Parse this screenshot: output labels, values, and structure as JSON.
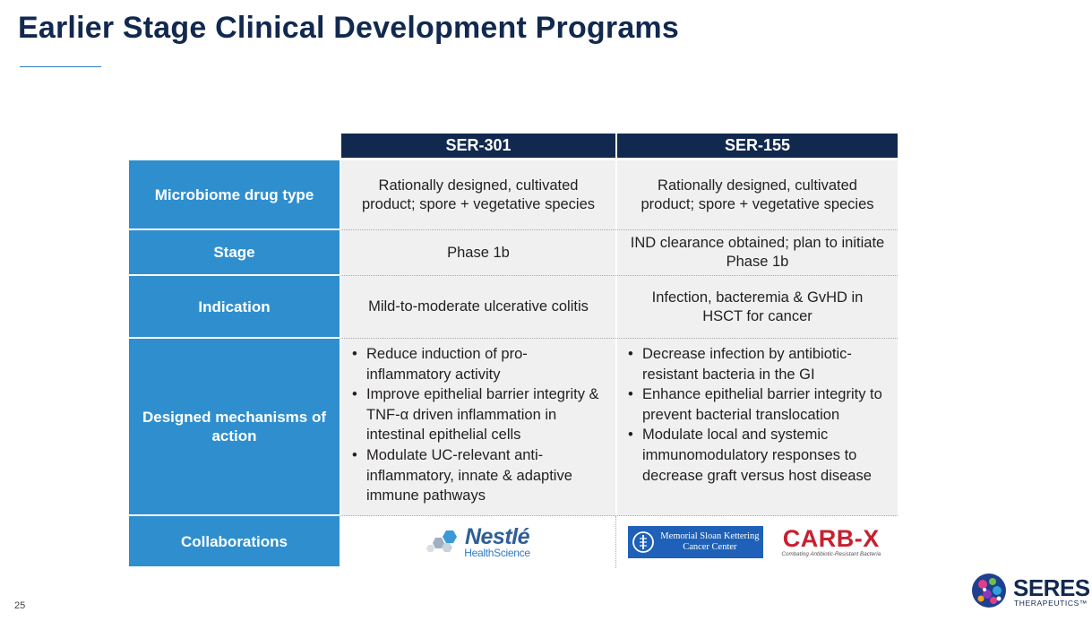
{
  "slide": {
    "title": "Earlier Stage Clinical Development Programs",
    "page_number": "25"
  },
  "table": {
    "columns": [
      "SER-301",
      "SER-155"
    ],
    "rows": [
      {
        "label": "Microbiome drug type",
        "cells": [
          "Rationally designed, cultivated product; spore + vegetative species",
          "Rationally designed, cultivated product; spore + vegetative species"
        ]
      },
      {
        "label": "Stage",
        "cells": [
          "Phase 1b",
          "IND clearance obtained; plan to initiate Phase 1b"
        ]
      },
      {
        "label": "Indication",
        "cells": [
          "Mild-to-moderate ulcerative colitis",
          "Infection, bacteremia & GvHD in HSCT for cancer"
        ]
      },
      {
        "label": "Designed mechanisms of action",
        "bullets": [
          [
            "Reduce induction of pro-inflammatory activity",
            "Improve epithelial barrier integrity & TNF-α driven inflammation in intestinal epithelial cells",
            "Modulate UC-relevant anti-inflammatory, innate & adaptive immune pathways"
          ],
          [
            "Decrease infection by antibiotic-resistant bacteria in the GI",
            "Enhance epithelial barrier integrity to prevent bacterial translocation",
            "Modulate local and systemic immunomodulatory responses to decrease graft versus host disease"
          ]
        ]
      },
      {
        "label": "Collaborations"
      }
    ]
  },
  "logos": {
    "nestle": {
      "word": "Nestlé",
      "sub": "HealthScience"
    },
    "mskcc": {
      "line1": "Memorial Sloan Kettering",
      "line2": "Cancer Center"
    },
    "carbx": {
      "word": "CARB-X",
      "sub": "Combating Antibiotic-Resistant Bacteria"
    },
    "seres": {
      "word": "SERES",
      "sub": "THERAPEUTICS™"
    }
  },
  "colors": {
    "navy": "#12294f",
    "row_label_blue": "#2f8fce",
    "cell_gray": "#f0f0f0",
    "mskcc_blue": "#1f61b8",
    "carbx_red": "#c8202e"
  }
}
